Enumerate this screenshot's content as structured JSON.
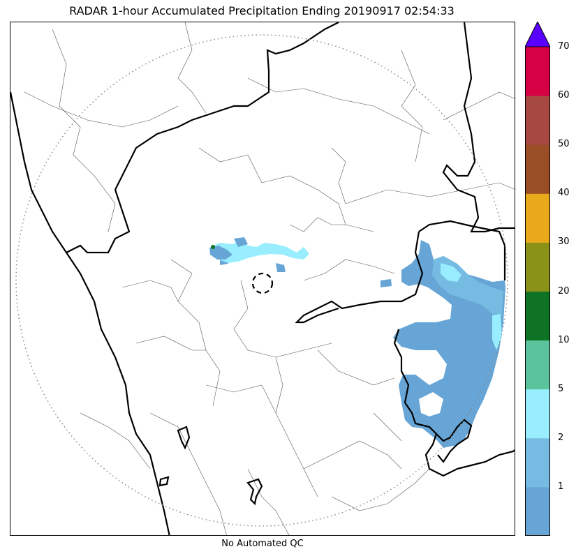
{
  "title": "RADAR 1-hour Accumulated Precipitation Ending 20190917 02:54:33",
  "footer_note": "No Automated QC",
  "colorbar": {
    "extend": "max",
    "extend_color": "#5a00ff",
    "levels": [
      {
        "label": "",
        "color": "#66a5d6"
      },
      {
        "label": "1",
        "color": "#75bbe2"
      },
      {
        "label": "2",
        "color": "#98eefe"
      },
      {
        "label": "5",
        "color": "#5cc49c"
      },
      {
        "label": "10",
        "color": "#0e7324"
      },
      {
        "label": "20",
        "color": "#8a9218"
      },
      {
        "label": "30",
        "color": "#e8a91c"
      },
      {
        "label": "40",
        "color": "#9a4e26"
      },
      {
        "label": "50",
        "color": "#a74942"
      },
      {
        "label": "60",
        "color": "#d60044"
      }
    ],
    "top_label": "70"
  },
  "map": {
    "radar_range_ring": "dotted",
    "radar_site_marker": "dashed-circle"
  }
}
